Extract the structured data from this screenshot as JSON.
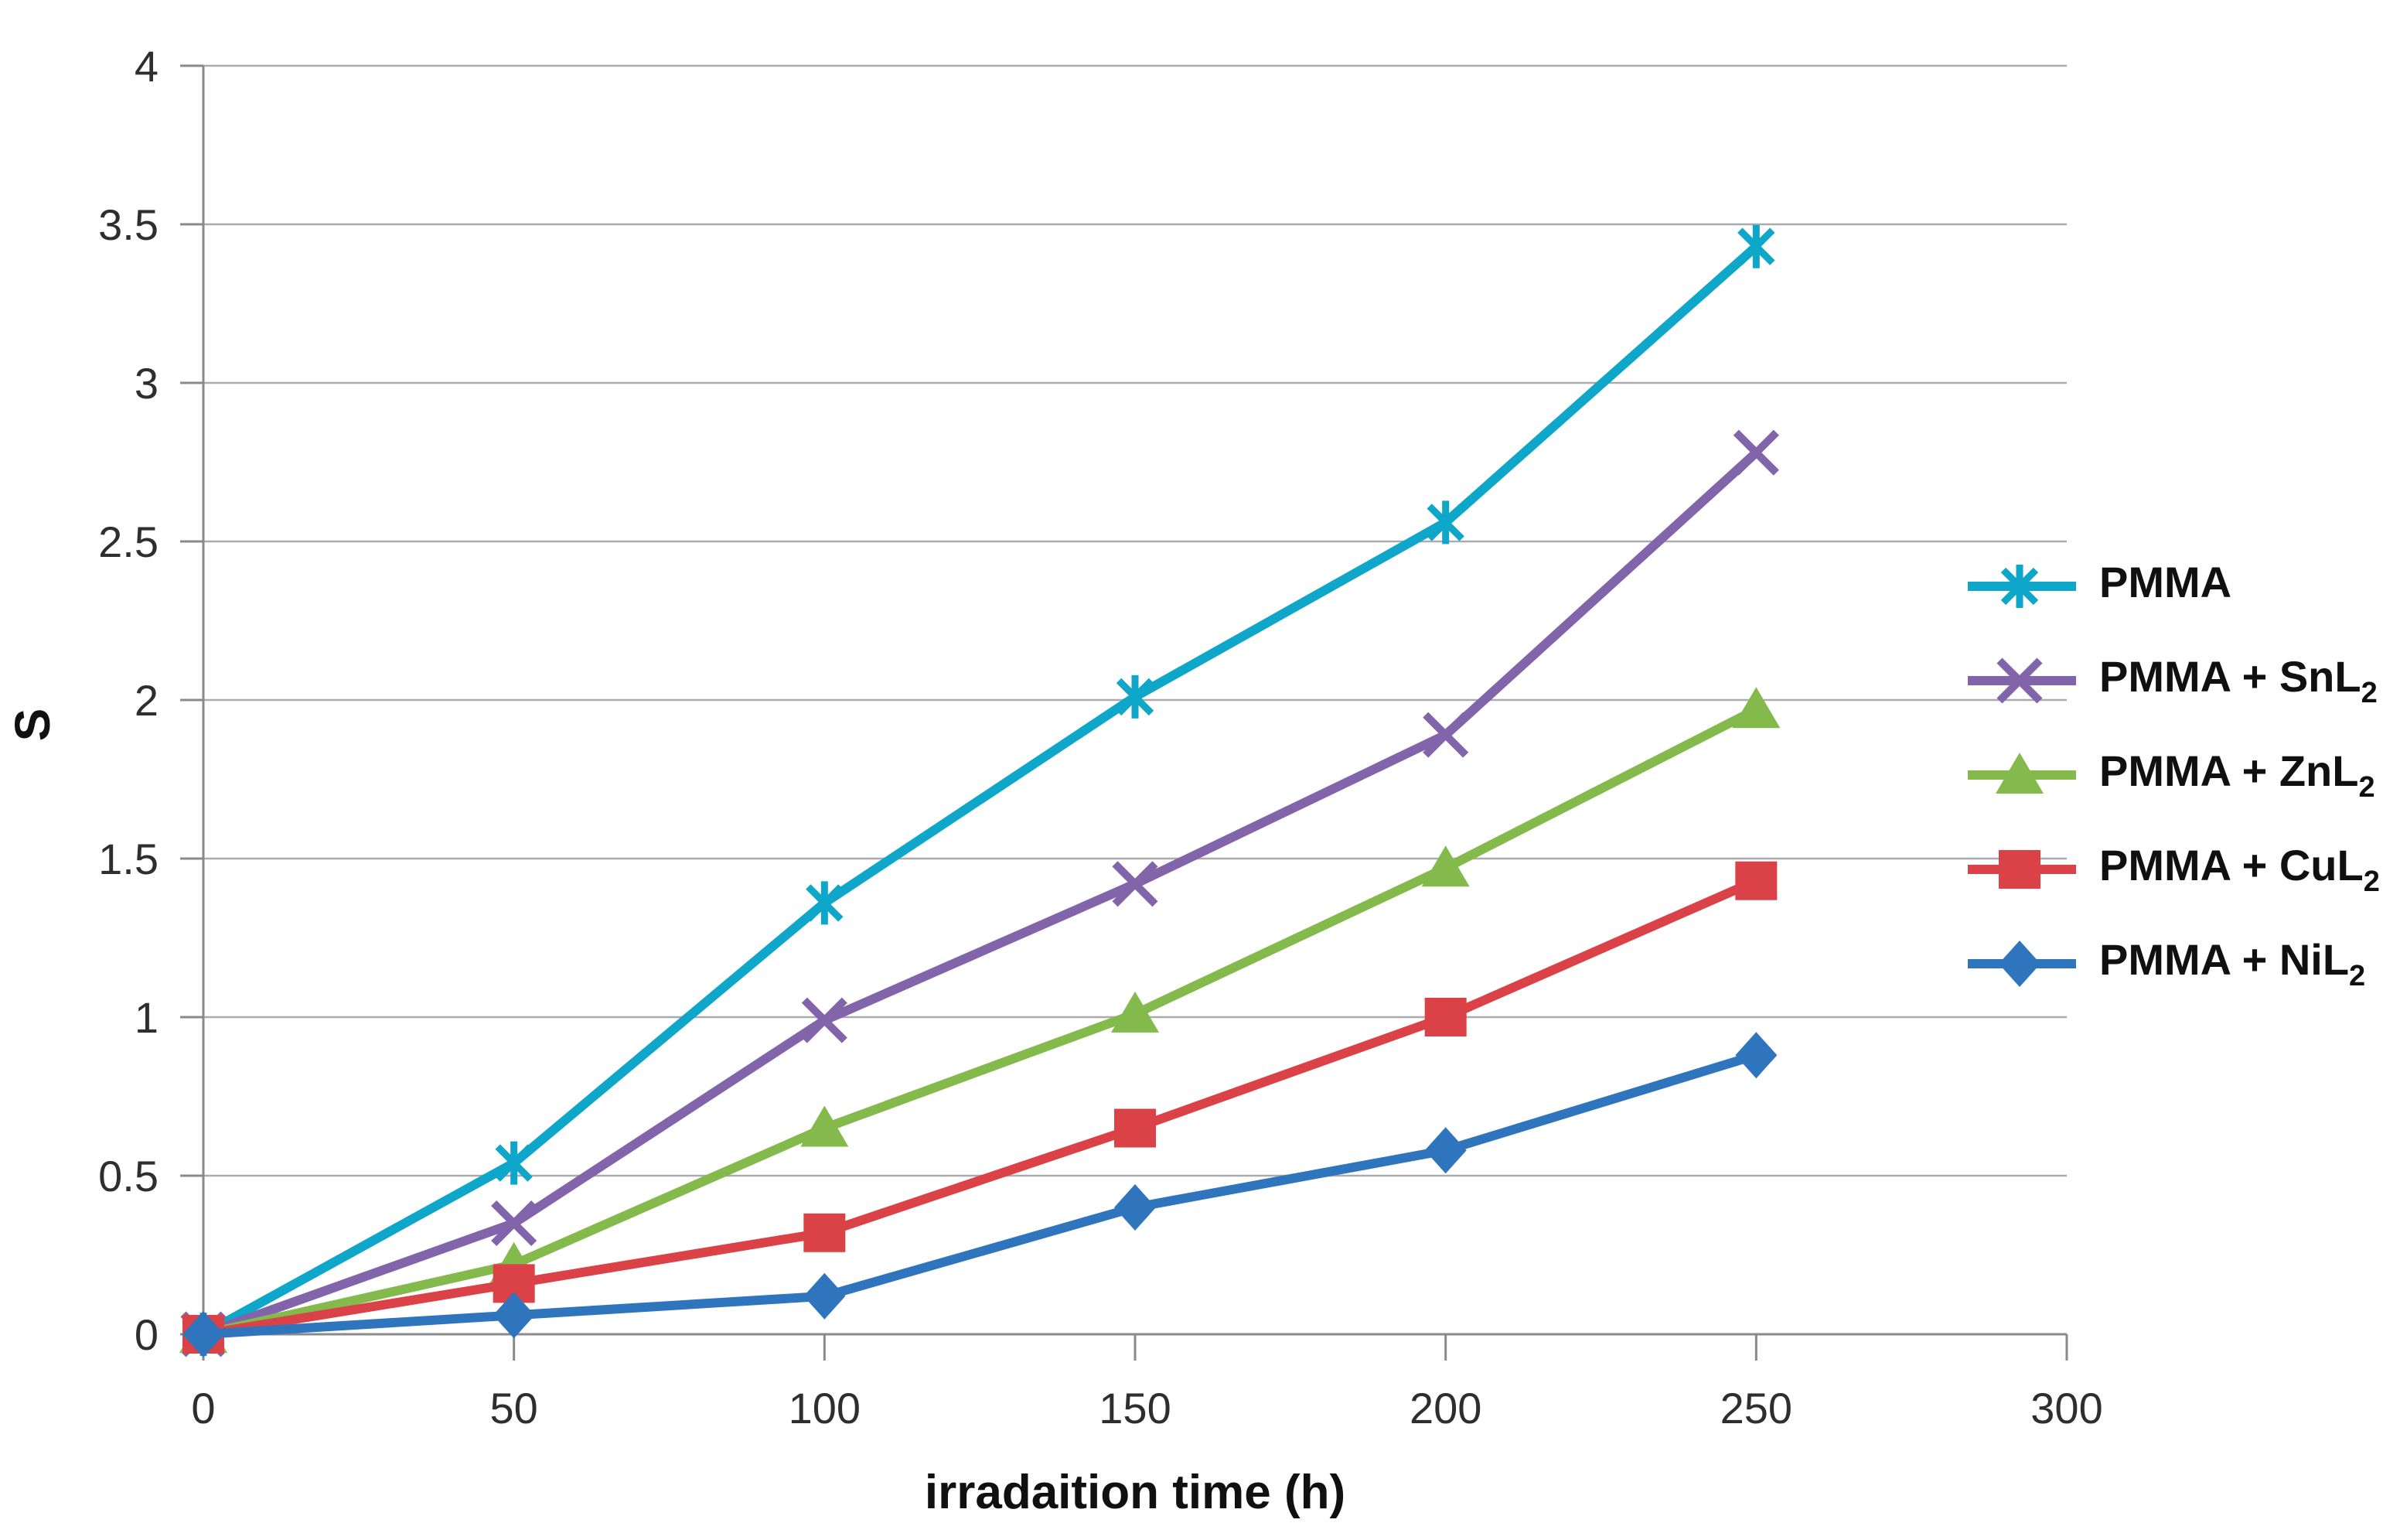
{
  "chart_data": {
    "type": "line",
    "title": "",
    "xlabel": "irradaition time (h)",
    "ylabel": "S",
    "x": [
      0,
      50,
      100,
      150,
      200,
      250
    ],
    "xlim": [
      0,
      300
    ],
    "ylim": [
      0,
      4
    ],
    "xticks": [
      "0",
      "50",
      "100",
      "150",
      "200",
      "250",
      "300"
    ],
    "xtick_values": [
      0,
      50,
      100,
      150,
      200,
      250,
      300
    ],
    "yticks": [
      "0",
      "0.5",
      "1",
      "1.5",
      "2",
      "2.5",
      "3",
      "3.5",
      "4"
    ],
    "ytick_values": [
      0,
      0.5,
      1,
      1.5,
      2,
      2.5,
      3,
      3.5,
      4
    ],
    "grid": "horizontal",
    "legend_position": "right-inside",
    "grid_color": "#ababab",
    "axis_color": "#8a8a8a",
    "tick_text_color": "#2e2e2e",
    "series": [
      {
        "name": "PMMA",
        "label": "PMMA",
        "sub": "",
        "marker": "asterisk",
        "color": "#0ea6c9",
        "values": [
          0,
          0.54,
          1.36,
          2.01,
          2.56,
          3.43
        ]
      },
      {
        "name": "PMMA + SnL2",
        "label": "PMMA + SnL",
        "sub": "2",
        "marker": "x",
        "color": "#8264aa",
        "values": [
          0,
          0.35,
          0.99,
          1.42,
          1.89,
          2.78
        ]
      },
      {
        "name": "PMMA + ZnL2",
        "label": "PMMA + ZnL",
        "sub": "2",
        "marker": "triangle",
        "color": "#84ba4b",
        "values": [
          0,
          0.22,
          0.65,
          1.01,
          1.47,
          1.97
        ]
      },
      {
        "name": "PMMA + CuL2",
        "label": "PMMA + CuL",
        "sub": "2",
        "marker": "square",
        "color": "#da4247",
        "values": [
          0,
          0.16,
          0.32,
          0.65,
          1.0,
          1.43
        ]
      },
      {
        "name": "PMMA + NiL2",
        "label": "PMMA + NiL",
        "sub": "2",
        "marker": "diamond",
        "color": "#2e75be",
        "values": [
          0,
          0.06,
          0.12,
          0.4,
          0.58,
          0.88
        ]
      }
    ]
  }
}
